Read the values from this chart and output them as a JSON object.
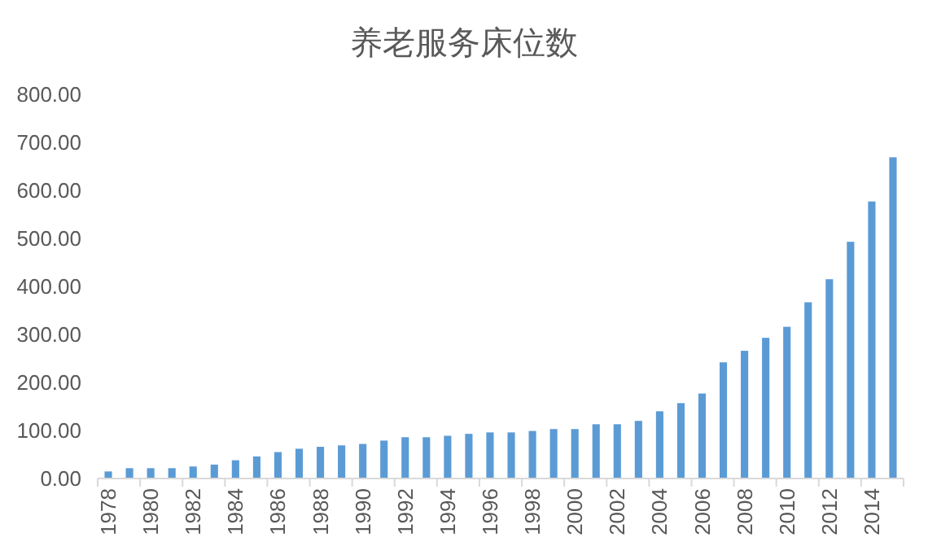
{
  "chart_data": {
    "type": "bar",
    "title": "养老服务床位数",
    "categories": [
      "1978",
      null,
      "1980",
      null,
      "1982",
      null,
      "1984",
      null,
      "1986",
      null,
      "1988",
      null,
      "1990",
      null,
      "1992",
      null,
      "1994",
      null,
      "1996",
      null,
      "1998",
      null,
      "2000",
      null,
      "2002",
      null,
      "2004",
      null,
      "2006",
      null,
      "2008",
      null,
      "2010",
      null,
      "2012",
      null,
      "2014",
      null
    ],
    "values": [
      14.7,
      21.5,
      21.5,
      21.5,
      25,
      29,
      38,
      46,
      55,
      62,
      66,
      69,
      72,
      79,
      86,
      86,
      89,
      93,
      96,
      96,
      99,
      103,
      103,
      113,
      113,
      120,
      140,
      157,
      177,
      242,
      266,
      293,
      316,
      367,
      415,
      493,
      577,
      669
    ],
    "color": "#5b9bd5",
    "ylim": [
      0,
      800
    ],
    "yticks": [
      {
        "value": 0,
        "label": "0.00"
      },
      {
        "value": 100,
        "label": "100.00"
      },
      {
        "value": 200,
        "label": "200.00"
      },
      {
        "value": 300,
        "label": "300.00"
      },
      {
        "value": 400,
        "label": "400.00"
      },
      {
        "value": 500,
        "label": "500.00"
      },
      {
        "value": 600,
        "label": "600.00"
      },
      {
        "value": 700,
        "label": "700.00"
      },
      {
        "value": 800,
        "label": "800.00"
      }
    ]
  }
}
